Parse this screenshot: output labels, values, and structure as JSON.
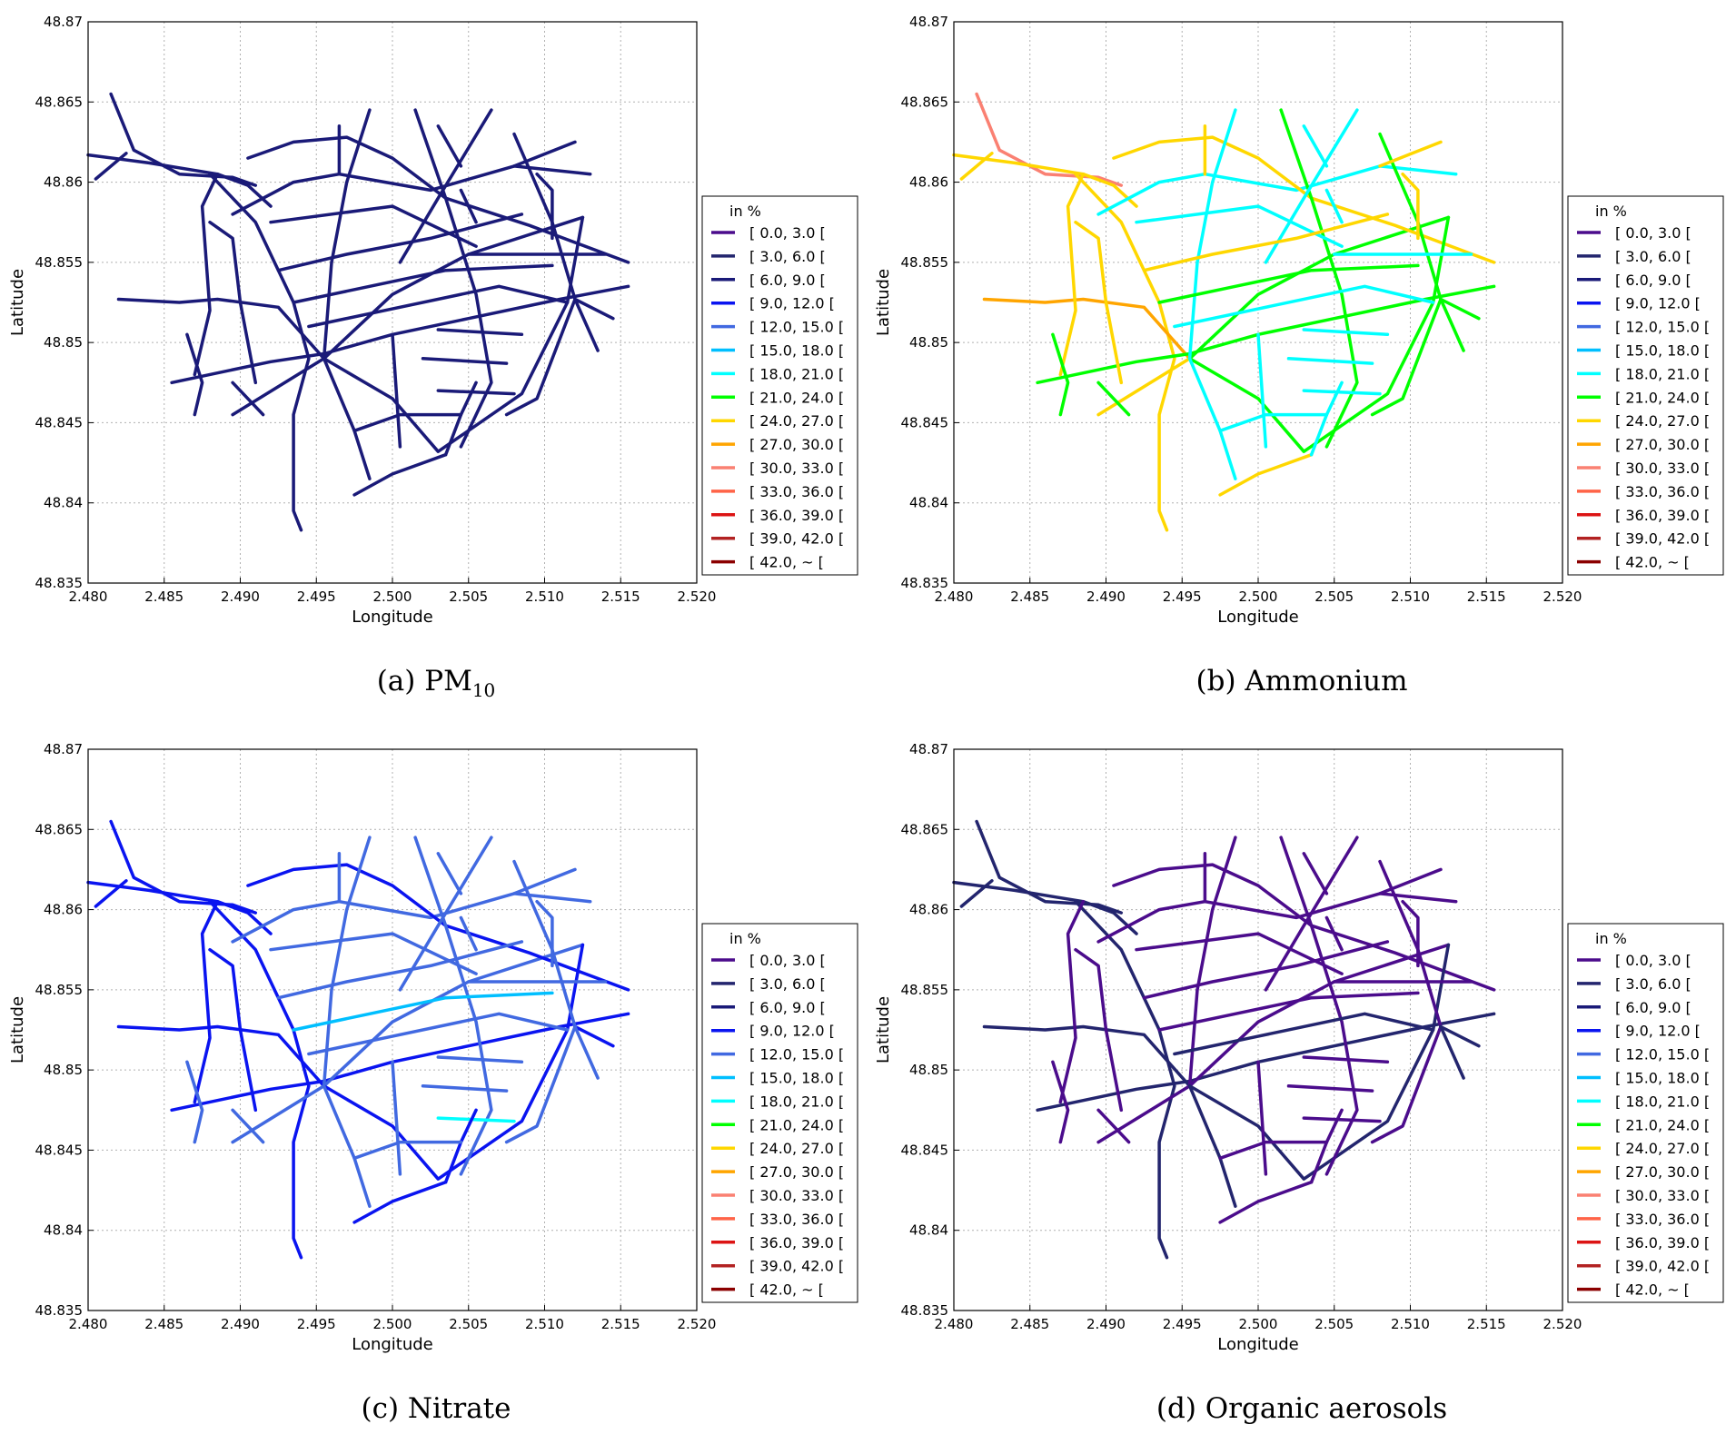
{
  "legend_title": "in %",
  "classes": [
    {
      "label": "[ 0.0, 3.0 [",
      "color": "#4b0c8c"
    },
    {
      "label": "[ 3.0, 6.0 [",
      "color": "#23256e"
    },
    {
      "label": "[ 6.0, 9.0 [",
      "color": "#1a1a78"
    },
    {
      "label": "[ 9.0, 12.0 [",
      "color": "#0a14f0"
    },
    {
      "label": "[ 12.0, 15.0 [",
      "color": "#4169e1"
    },
    {
      "label": "[ 15.0, 18.0 [",
      "color": "#00bfff"
    },
    {
      "label": "[ 18.0, 21.0 [",
      "color": "#00ffff"
    },
    {
      "label": "[ 21.0, 24.0 [",
      "color": "#00ff00"
    },
    {
      "label": "[ 24.0, 27.0 [",
      "color": "#ffd700"
    },
    {
      "label": "[ 27.0, 30.0 [",
      "color": "#ffa500"
    },
    {
      "label": "[ 30.0, 33.0 [",
      "color": "#fa8072"
    },
    {
      "label": "[ 33.0, 36.0 [",
      "color": "#ff6347"
    },
    {
      "label": "[ 36.0, 39.0 [",
      "color": "#dc1414"
    },
    {
      "label": "[ 39.0, 42.0 [",
      "color": "#b22222"
    },
    {
      "label": "[ 42.0, ~ [",
      "color": "#8b0000"
    }
  ],
  "chart_data": [
    {
      "type": "line",
      "panel": 0,
      "caption": "(a) PM",
      "caption_sub": "10",
      "xlabel": "Longitude",
      "ylabel": "Latitude"
    },
    {
      "type": "line",
      "panel": 1,
      "caption": "(b) Ammonium",
      "caption_sub": "",
      "xlabel": "Longitude",
      "ylabel": "Latitude"
    },
    {
      "type": "line",
      "panel": 2,
      "caption": "(c) Nitrate",
      "caption_sub": "",
      "xlabel": "Longitude",
      "ylabel": "Latitude"
    },
    {
      "type": "line",
      "panel": 3,
      "caption": "(d) Organic aerosols",
      "caption_sub": "",
      "xlabel": "Longitude",
      "ylabel": "Latitude"
    }
  ],
  "axes": {
    "xlim": [
      2.48,
      2.52
    ],
    "ylim": [
      48.835,
      48.87
    ],
    "xticks": [
      2.48,
      2.485,
      2.49,
      2.495,
      2.5,
      2.505,
      2.51,
      2.515,
      2.52
    ],
    "xtick_labels": [
      "2.480",
      "2.485",
      "2.490",
      "2.495",
      "2.500",
      "2.505",
      "2.510",
      "2.515",
      "2.520"
    ],
    "yticks": [
      48.835,
      48.84,
      48.845,
      48.85,
      48.855,
      48.86,
      48.865,
      48.87
    ],
    "ytick_labels": [
      "48.835",
      "48.84",
      "48.845",
      "48.85",
      "48.855",
      "48.86",
      "48.865",
      "48.87"
    ],
    "grid": true,
    "legend_position": "right"
  },
  "network": [
    {
      "path": [
        [
          2.4815,
          48.8655
        ],
        [
          2.483,
          48.862
        ],
        [
          2.486,
          48.8605
        ],
        [
          2.4895,
          48.8603
        ],
        [
          2.491,
          48.8598
        ]
      ],
      "classes": [
        2,
        10,
        3,
        1
      ]
    },
    {
      "path": [
        [
          2.48,
          48.8617
        ],
        [
          2.484,
          48.8612
        ],
        [
          2.4885,
          48.8605
        ],
        [
          2.4905,
          48.8598
        ],
        [
          2.492,
          48.8585
        ]
      ],
      "classes": [
        2,
        8,
        3,
        1
      ]
    },
    {
      "path": [
        [
          2.4805,
          48.8602
        ],
        [
          2.4825,
          48.8618
        ]
      ],
      "classes": [
        2,
        8,
        3,
        1
      ]
    },
    {
      "path": [
        [
          2.488,
          48.8605
        ],
        [
          2.491,
          48.8575
        ],
        [
          2.4935,
          48.8525
        ],
        [
          2.4945,
          48.849
        ],
        [
          2.4935,
          48.8455
        ],
        [
          2.4935,
          48.8395
        ],
        [
          2.494,
          48.8383
        ]
      ],
      "classes": [
        2,
        8,
        3,
        1
      ]
    },
    {
      "path": [
        [
          2.482,
          48.8527
        ],
        [
          2.486,
          48.8525
        ],
        [
          2.4885,
          48.8527
        ],
        [
          2.4925,
          48.8522
        ],
        [
          2.4955,
          48.849
        ]
      ],
      "classes": [
        2,
        9,
        3,
        1
      ]
    },
    {
      "path": [
        [
          2.4855,
          48.8475
        ],
        [
          2.492,
          48.8488
        ],
        [
          2.4955,
          48.8493
        ],
        [
          2.5,
          48.8505
        ],
        [
          2.505,
          48.8515
        ],
        [
          2.511,
          48.8527
        ],
        [
          2.5155,
          48.8535
        ]
      ],
      "classes": [
        2,
        7,
        3,
        1
      ]
    },
    {
      "path": [
        [
          2.4955,
          48.849
        ],
        [
          2.5,
          48.853
        ],
        [
          2.505,
          48.8555
        ],
        [
          2.5125,
          48.8578
        ]
      ],
      "classes": [
        2,
        7,
        4,
        0
      ]
    },
    {
      "path": [
        [
          2.4895,
          48.858
        ],
        [
          2.4935,
          48.86
        ],
        [
          2.4965,
          48.8605
        ],
        [
          2.5025,
          48.8595
        ],
        [
          2.508,
          48.861
        ],
        [
          2.513,
          48.8605
        ]
      ],
      "classes": [
        2,
        6,
        4,
        0
      ]
    },
    {
      "path": [
        [
          2.4905,
          48.8615
        ],
        [
          2.4935,
          48.8625
        ],
        [
          2.497,
          48.8628
        ],
        [
          2.5,
          48.8615
        ],
        [
          2.5035,
          48.859
        ],
        [
          2.509,
          48.8573
        ],
        [
          2.5155,
          48.855
        ]
      ],
      "classes": [
        2,
        8,
        3,
        0
      ]
    },
    {
      "path": [
        [
          2.4955,
          48.849
        ],
        [
          2.5,
          48.8465
        ],
        [
          2.503,
          48.8432
        ],
        [
          2.5085,
          48.8468
        ],
        [
          2.5115,
          48.8525
        ],
        [
          2.5125,
          48.8578
        ]
      ],
      "classes": [
        2,
        7,
        3,
        1
      ]
    },
    {
      "path": [
        [
          2.4975,
          48.8405
        ],
        [
          2.5,
          48.8418
        ],
        [
          2.5035,
          48.843
        ]
      ],
      "classes": [
        2,
        8,
        3,
        0
      ]
    },
    {
      "path": [
        [
          2.4985,
          48.8645
        ],
        [
          2.497,
          48.86
        ],
        [
          2.496,
          48.855
        ],
        [
          2.4955,
          48.849
        ]
      ],
      "classes": [
        2,
        6,
        4,
        0
      ]
    },
    {
      "path": [
        [
          2.5015,
          48.8645
        ],
        [
          2.5035,
          48.859
        ],
        [
          2.5055,
          48.853
        ],
        [
          2.5065,
          48.8475
        ],
        [
          2.5045,
          48.8435
        ]
      ],
      "classes": [
        2,
        7,
        4,
        0
      ]
    },
    {
      "path": [
        [
          2.508,
          48.863
        ],
        [
          2.5105,
          48.8575
        ],
        [
          2.512,
          48.8527
        ],
        [
          2.5095,
          48.8465
        ],
        [
          2.5075,
          48.8455
        ]
      ],
      "classes": [
        2,
        7,
        4,
        0
      ]
    },
    {
      "path": [
        [
          2.5065,
          48.8645
        ],
        [
          2.503,
          48.859
        ],
        [
          2.5005,
          48.855
        ]
      ],
      "classes": [
        2,
        6,
        4,
        0
      ]
    },
    {
      "path": [
        [
          2.4885,
          48.8605
        ],
        [
          2.4875,
          48.8585
        ],
        [
          2.488,
          48.852
        ],
        [
          2.487,
          48.848
        ]
      ],
      "classes": [
        2,
        8,
        3,
        0
      ]
    },
    {
      "path": [
        [
          2.488,
          48.8575
        ],
        [
          2.4895,
          48.8565
        ],
        [
          2.49,
          48.8525
        ],
        [
          2.491,
          48.8475
        ]
      ],
      "classes": [
        2,
        8,
        3,
        0
      ]
    },
    {
      "path": [
        [
          2.4895,
          48.8455
        ],
        [
          2.4955,
          48.849
        ]
      ],
      "classes": [
        2,
        8,
        4,
        0
      ]
    },
    {
      "path": [
        [
          2.4955,
          48.849
        ],
        [
          2.4975,
          48.8445
        ],
        [
          2.4985,
          48.8415
        ]
      ],
      "classes": [
        2,
        6,
        4,
        1
      ]
    },
    {
      "path": [
        [
          2.5,
          48.8505
        ],
        [
          2.5005,
          48.8435
        ]
      ],
      "classes": [
        2,
        6,
        4,
        0
      ]
    },
    {
      "path": [
        [
          2.505,
          48.8555
        ],
        [
          2.514,
          48.8555
        ]
      ],
      "classes": [
        2,
        6,
        4,
        0
      ]
    },
    {
      "path": [
        [
          2.503,
          48.8508
        ],
        [
          2.5085,
          48.8505
        ]
      ],
      "classes": [
        2,
        6,
        4,
        0
      ]
    },
    {
      "path": [
        [
          2.502,
          48.849
        ],
        [
          2.5075,
          48.8487
        ]
      ],
      "classes": [
        2,
        6,
        4,
        0
      ]
    },
    {
      "path": [
        [
          2.503,
          48.847
        ],
        [
          2.508,
          48.8468
        ]
      ],
      "classes": [
        2,
        6,
        6,
        0
      ]
    },
    {
      "path": [
        [
          2.492,
          48.8575
        ],
        [
          2.5,
          48.8585
        ],
        [
          2.5055,
          48.856
        ]
      ],
      "classes": [
        2,
        6,
        4,
        0
      ]
    },
    {
      "path": [
        [
          2.4925,
          48.8545
        ],
        [
          2.497,
          48.8555
        ],
        [
          2.5025,
          48.8565
        ],
        [
          2.5085,
          48.858
        ]
      ],
      "classes": [
        2,
        8,
        4,
        0
      ]
    },
    {
      "path": [
        [
          2.4935,
          48.8525
        ],
        [
          2.4985,
          48.8535
        ],
        [
          2.5035,
          48.8545
        ],
        [
          2.5105,
          48.8548
        ]
      ],
      "classes": [
        2,
        7,
        5,
        0
      ]
    },
    {
      "path": [
        [
          2.4945,
          48.851
        ],
        [
          2.4995,
          48.852
        ],
        [
          2.507,
          48.8535
        ],
        [
          2.5115,
          48.8525
        ]
      ],
      "classes": [
        2,
        6,
        4,
        1
      ]
    },
    {
      "path": [
        [
          2.5095,
          48.8605
        ],
        [
          2.5105,
          48.8595
        ],
        [
          2.5105,
          48.8565
        ]
      ],
      "classes": [
        2,
        8,
        4,
        0
      ]
    },
    {
      "path": [
        [
          2.508,
          48.861
        ],
        [
          2.512,
          48.8625
        ]
      ],
      "classes": [
        2,
        8,
        4,
        0
      ]
    },
    {
      "path": [
        [
          2.512,
          48.8527
        ],
        [
          2.5145,
          48.8515
        ]
      ],
      "classes": [
        2,
        7,
        3,
        1
      ]
    },
    {
      "path": [
        [
          2.512,
          48.8527
        ],
        [
          2.5135,
          48.8495
        ]
      ],
      "classes": [
        2,
        7,
        4,
        1
      ]
    },
    {
      "path": [
        [
          2.4865,
          48.8505
        ],
        [
          2.4875,
          48.8475
        ],
        [
          2.487,
          48.8455
        ]
      ],
      "classes": [
        2,
        7,
        4,
        0
      ]
    },
    {
      "path": [
        [
          2.4895,
          48.8475
        ],
        [
          2.4915,
          48.8455
        ]
      ],
      "classes": [
        2,
        7,
        4,
        0
      ]
    },
    {
      "path": [
        [
          2.5035,
          48.843
        ],
        [
          2.5045,
          48.8455
        ],
        [
          2.5055,
          48.8475
        ]
      ],
      "classes": [
        2,
        6,
        3,
        0
      ]
    },
    {
      "path": [
        [
          2.4975,
          48.8445
        ],
        [
          2.5005,
          48.8455
        ],
        [
          2.5045,
          48.8455
        ]
      ],
      "classes": [
        2,
        6,
        4,
        0
      ]
    },
    {
      "path": [
        [
          2.4965,
          48.8605
        ],
        [
          2.4965,
          48.8635
        ]
      ],
      "classes": [
        2,
        8,
        4,
        0
      ]
    },
    {
      "path": [
        [
          2.503,
          48.8635
        ],
        [
          2.5045,
          48.861
        ]
      ],
      "classes": [
        2,
        6,
        4,
        0
      ]
    },
    {
      "path": [
        [
          2.5045,
          48.8595
        ],
        [
          2.5055,
          48.8575
        ]
      ],
      "classes": [
        2,
        6,
        4,
        0
      ]
    }
  ]
}
